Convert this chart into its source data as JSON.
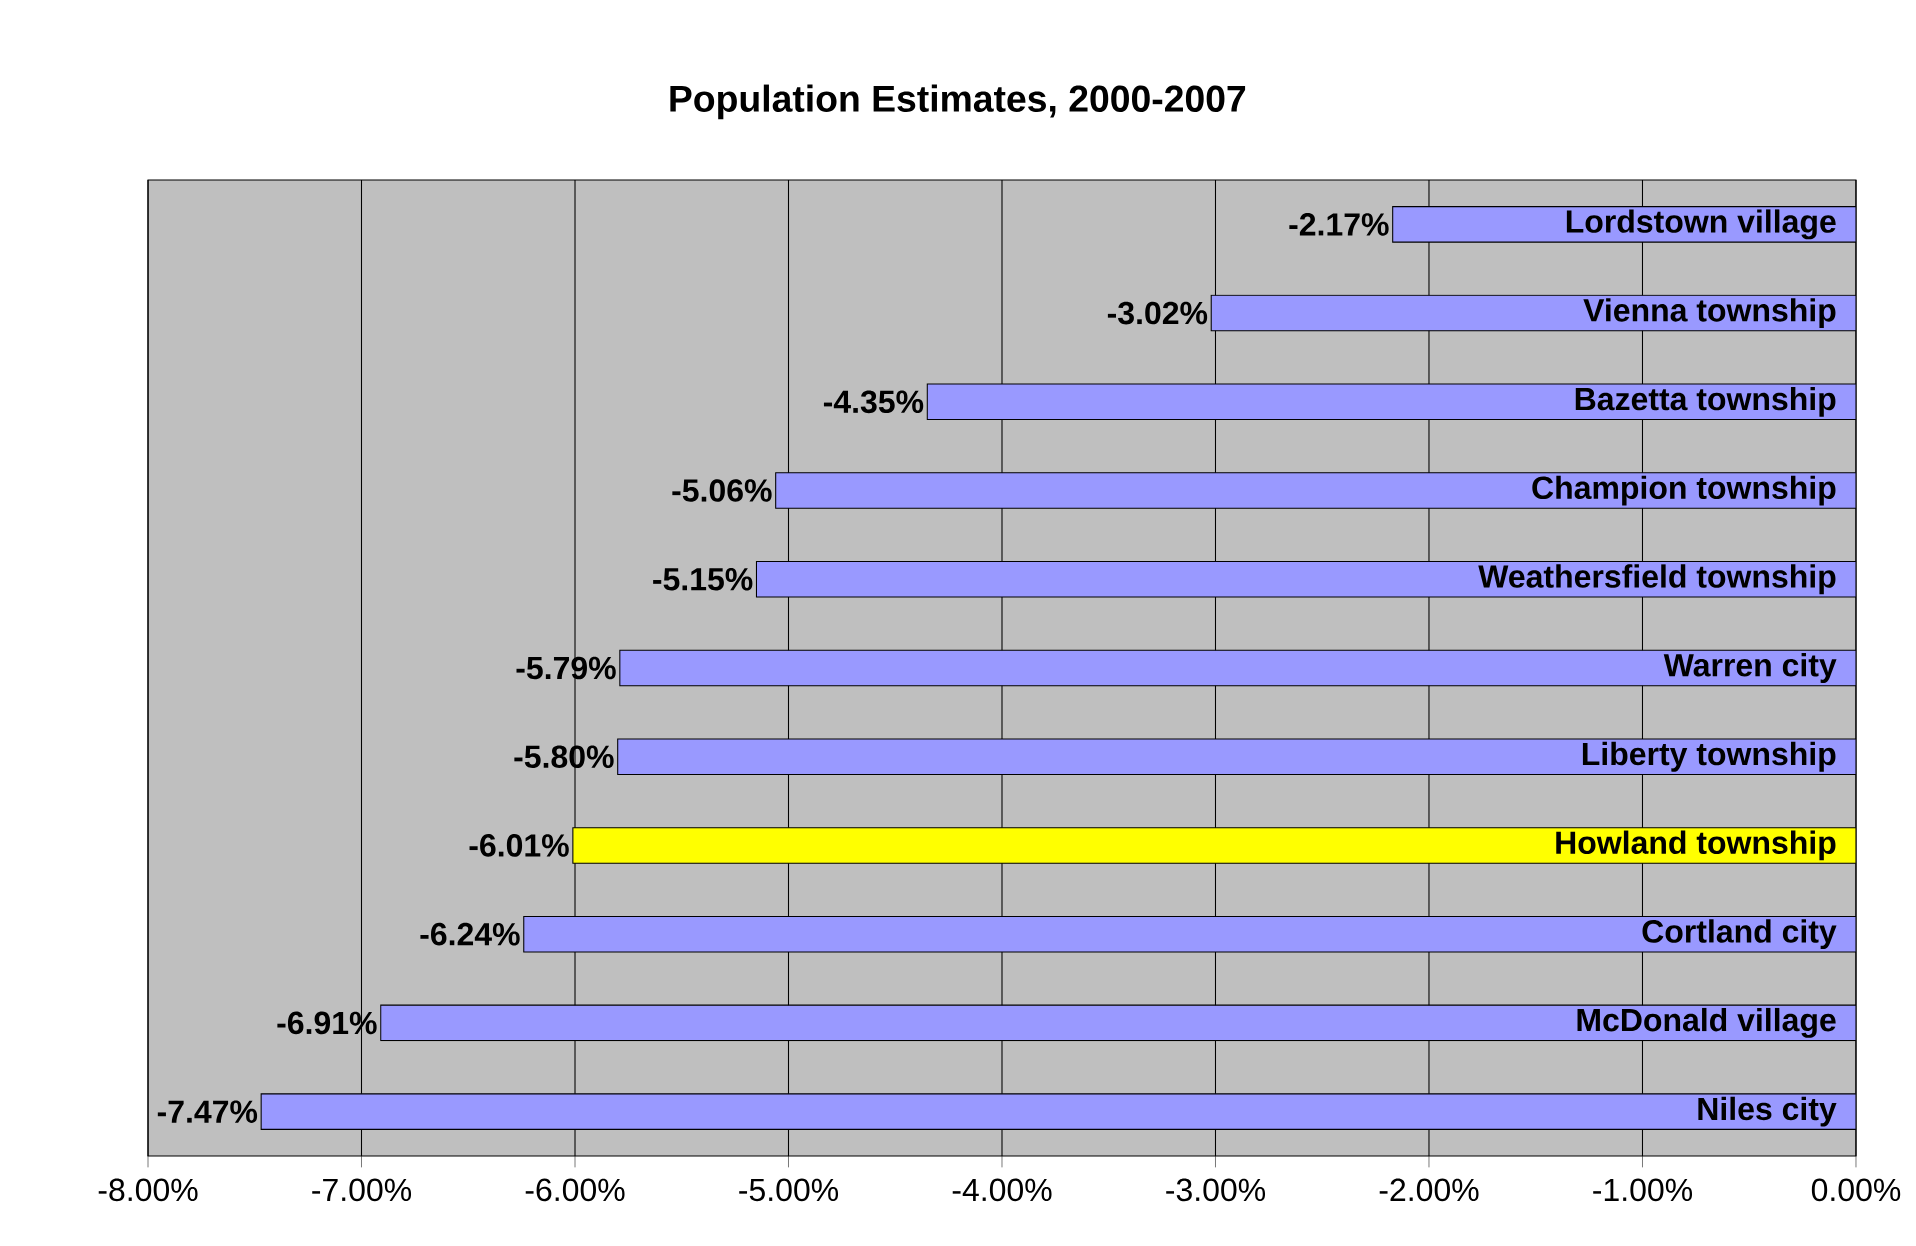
{
  "chart_data": {
    "type": "bar",
    "orientation": "horizontal",
    "title": "Population Estimates, 2000-2007",
    "categories": [
      "Lordstown village",
      "Vienna township",
      "Bazetta township",
      "Champion township",
      "Weathersfield township",
      "Warren city",
      "Liberty township",
      "Howland township",
      "Cortland city",
      "McDonald village",
      "Niles city"
    ],
    "values": [
      -2.17,
      -3.02,
      -4.35,
      -5.06,
      -5.15,
      -5.79,
      -5.8,
      -6.01,
      -6.24,
      -6.91,
      -7.47
    ],
    "value_labels": [
      "-2.17%",
      "-3.02%",
      "-4.35%",
      "-5.06%",
      "-5.15%",
      "-5.79%",
      "-5.80%",
      "-6.01%",
      "-6.24%",
      "-6.91%",
      "-7.47%"
    ],
    "colors": [
      "#9999ff",
      "#9999ff",
      "#9999ff",
      "#9999ff",
      "#9999ff",
      "#9999ff",
      "#9999ff",
      "#ffff00",
      "#9999ff",
      "#9999ff",
      "#9999ff"
    ],
    "xlim": [
      -8,
      0
    ],
    "xticks": [
      {
        "value": -8,
        "label": "-8.00%"
      },
      {
        "value": -7,
        "label": "-7.00%"
      },
      {
        "value": -6,
        "label": "-6.00%"
      },
      {
        "value": -5,
        "label": "-5.00%"
      },
      {
        "value": -4,
        "label": "-4.00%"
      },
      {
        "value": -3,
        "label": "-3.00%"
      },
      {
        "value": -2,
        "label": "-2.00%"
      },
      {
        "value": -1,
        "label": "-1.00%"
      },
      {
        "value": 0,
        "label": "0.00%"
      }
    ],
    "grid": "x"
  }
}
